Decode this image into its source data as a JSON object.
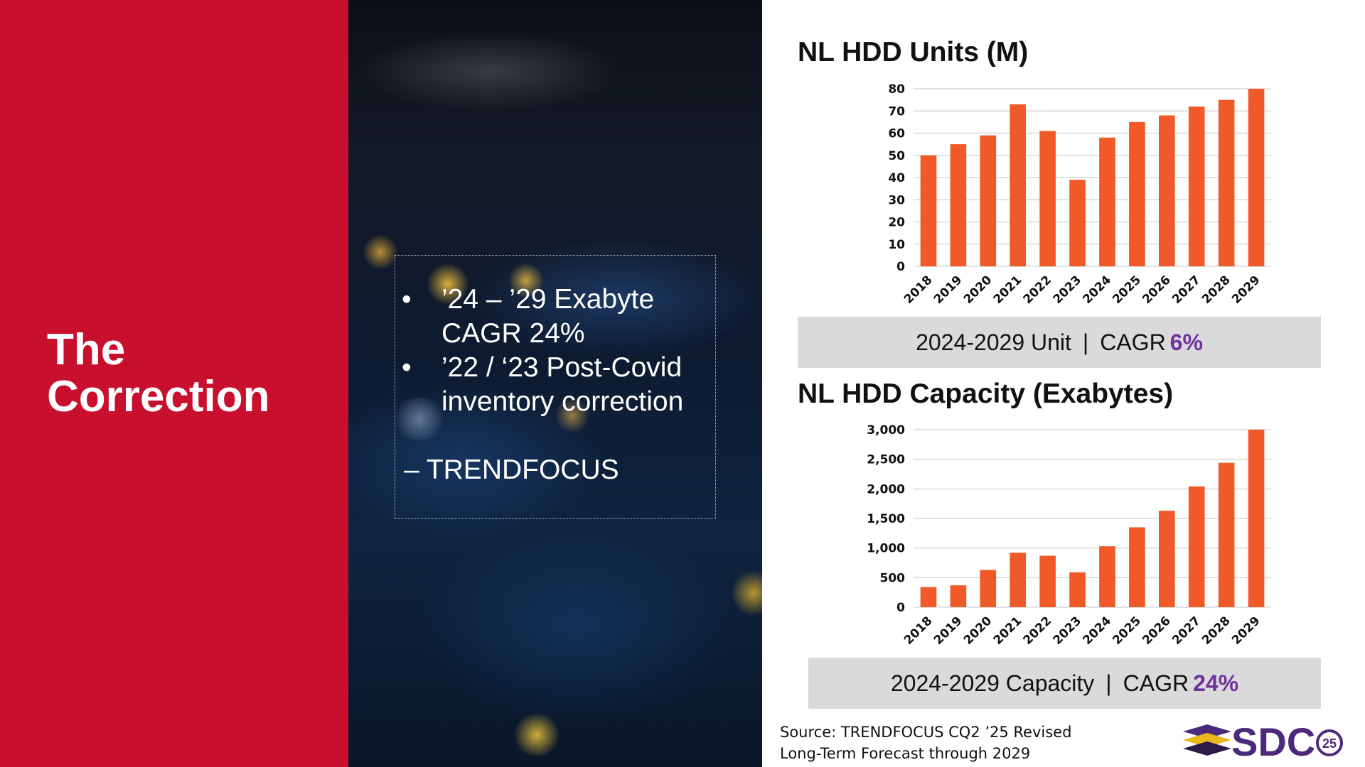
{
  "slide": {
    "title_line1": "The",
    "title_line2": "Correction",
    "bullets": [
      "’24 – ’29 Exabyte CAGR 24%",
      "’22 / ‘23 Post-Covid inventory correction"
    ],
    "bullet_symbol": "•",
    "attribution": "– TRENDFOCUS",
    "source_line1": "Source: TRENDFOCUS CQ2 ’25 Revised",
    "source_line2": "Long-Term Forecast through 2029",
    "logo_text": "SDC",
    "logo_superscript": "25",
    "colors": {
      "red_panel": "#c8102e",
      "bar": "#f05a28",
      "cagr_value": "#7030a0",
      "cagr_box": "#dadada"
    }
  },
  "chart_data": [
    {
      "type": "bar",
      "title": "NL HDD Units (M)",
      "categories": [
        "2018",
        "2019",
        "2020",
        "2021",
        "2022",
        "2023",
        "2024",
        "2025",
        "2026",
        "2027",
        "2028",
        "2029"
      ],
      "values": [
        50,
        55,
        59,
        73,
        61,
        39,
        58,
        65,
        68,
        72,
        75,
        80
      ],
      "ylim": [
        0,
        80
      ],
      "yticks": [
        0,
        10,
        20,
        30,
        40,
        50,
        60,
        70,
        80
      ],
      "ytick_labels": [
        "0",
        "10",
        "20",
        "30",
        "40",
        "50",
        "60",
        "70",
        "80"
      ],
      "grid": true,
      "cagr_label": "2024-2029 Unit",
      "cagr_sep": "|",
      "cagr_prefix": "CAGR",
      "cagr_value": "6%"
    },
    {
      "type": "bar",
      "title": "NL HDD Capacity (Exabytes)",
      "categories": [
        "2018",
        "2019",
        "2020",
        "2021",
        "2022",
        "2023",
        "2024",
        "2025",
        "2026",
        "2027",
        "2028",
        "2029"
      ],
      "values": [
        340,
        370,
        630,
        920,
        870,
        590,
        1030,
        1350,
        1630,
        2040,
        2440,
        3000
      ],
      "ylim": [
        0,
        3000
      ],
      "yticks": [
        0,
        500,
        1000,
        1500,
        2000,
        2500,
        3000
      ],
      "ytick_labels": [
        "0",
        "500",
        "1,000",
        "1,500",
        "2,000",
        "2,500",
        "3,000"
      ],
      "grid": true,
      "cagr_label": "2024-2029 Capacity",
      "cagr_sep": "|",
      "cagr_prefix": "CAGR",
      "cagr_value": "24%"
    }
  ]
}
